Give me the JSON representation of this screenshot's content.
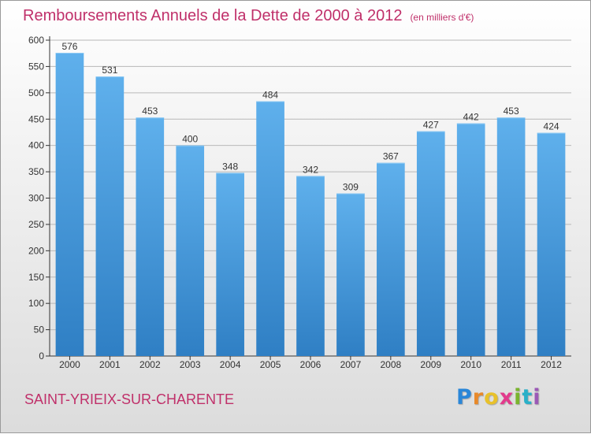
{
  "header": {
    "title": "Remboursements Annuels de la Dette de 2000 à 2012",
    "subtitle": "(en milliers d'€)"
  },
  "footer": {
    "place_name": "SAINT-YRIEIX-SUR-CHARENTE",
    "logo_letters": [
      "P",
      "r",
      "o",
      "x",
      "i",
      "t",
      "i"
    ],
    "logo_colors": [
      "#2a86d8",
      "#e8892a",
      "#e8c12a",
      "#e23a8c",
      "#7ab42e",
      "#2ab0c8",
      "#9b59b6"
    ]
  },
  "colors": {
    "bar_top": "#5fb0ec",
    "bar_bottom": "#2f7fc4",
    "title": "#c0306a"
  },
  "chart_data": {
    "type": "bar",
    "title": "Remboursements Annuels de la Dette de 2000 à 2012",
    "subtitle": "(en milliers d'€)",
    "categories": [
      "2000",
      "2001",
      "2002",
      "2003",
      "2004",
      "2005",
      "2006",
      "2007",
      "2008",
      "2009",
      "2010",
      "2011",
      "2012"
    ],
    "values": [
      576,
      531,
      453,
      400,
      348,
      484,
      342,
      309,
      367,
      427,
      442,
      453,
      424
    ],
    "ylim": [
      0,
      600
    ],
    "ytick_step": 50,
    "yticks": [
      "0",
      "50",
      "100",
      "150",
      "200",
      "250",
      "300",
      "350",
      "400",
      "450",
      "500",
      "550",
      "600"
    ],
    "grid": "horizontal",
    "data_labels": true
  }
}
